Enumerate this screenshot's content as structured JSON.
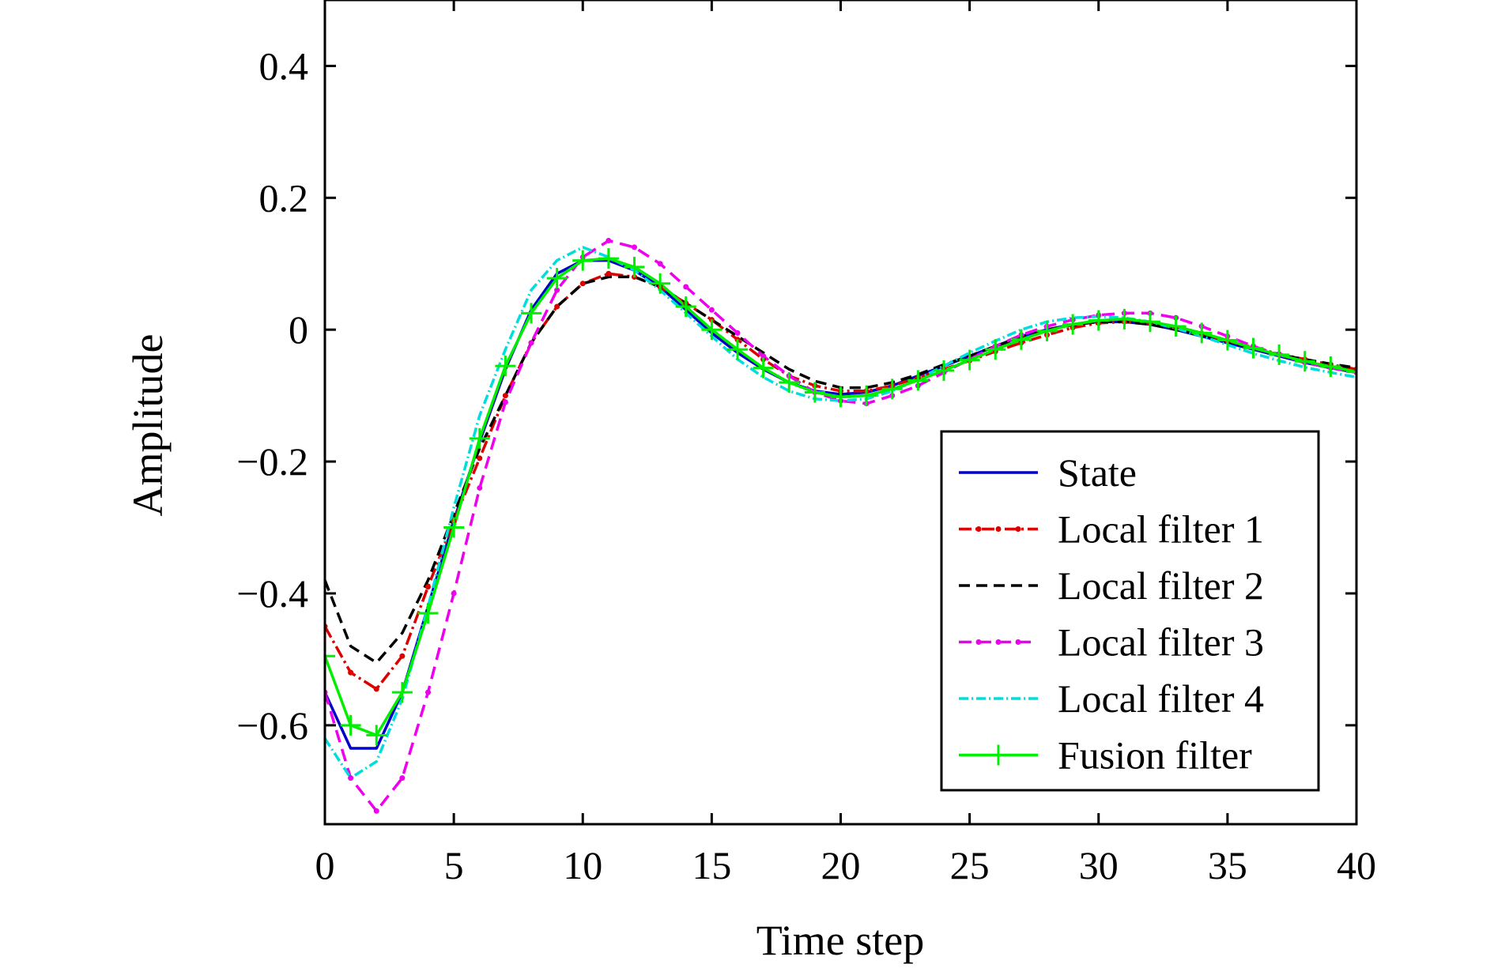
{
  "chart_data": {
    "type": "line",
    "title": "",
    "xlabel": "Time step",
    "ylabel": "Amplitude",
    "xlim": [
      0,
      40
    ],
    "ylim": [
      -0.75,
      0.5
    ],
    "x_ticks": [
      0,
      5,
      10,
      15,
      20,
      25,
      30,
      35,
      40
    ],
    "x_tick_labels": [
      "0",
      "5",
      "10",
      "15",
      "20",
      "25",
      "30",
      "35",
      "40"
    ],
    "y_ticks": [
      -0.6,
      -0.4,
      -0.2,
      0,
      0.2,
      0.4
    ],
    "y_tick_labels": [
      "−0.6",
      "−0.4",
      "−0.2",
      "0",
      "0.2",
      "0.4"
    ],
    "grid": false,
    "legend_position": "bottom-right",
    "x": [
      0,
      1,
      2,
      3,
      4,
      5,
      6,
      7,
      8,
      9,
      10,
      11,
      12,
      13,
      14,
      15,
      16,
      17,
      18,
      19,
      20,
      21,
      22,
      23,
      24,
      25,
      26,
      27,
      28,
      29,
      30,
      31,
      32,
      33,
      34,
      35,
      36,
      37,
      38,
      39,
      40
    ],
    "series": [
      {
        "name": "State",
        "color": "#0000cc",
        "dash": "",
        "marker": "none",
        "values": [
          -0.55,
          -0.635,
          -0.635,
          -0.55,
          -0.42,
          -0.29,
          -0.17,
          -0.06,
          0.03,
          0.085,
          0.105,
          0.105,
          0.09,
          0.065,
          0.03,
          -0.005,
          -0.035,
          -0.06,
          -0.08,
          -0.093,
          -0.098,
          -0.095,
          -0.085,
          -0.07,
          -0.055,
          -0.04,
          -0.025,
          -0.01,
          0.0,
          0.008,
          0.012,
          0.012,
          0.008,
          0.0,
          -0.01,
          -0.02,
          -0.03,
          -0.04,
          -0.05,
          -0.058,
          -0.065
        ]
      },
      {
        "name": "Local filter 1",
        "color": "#dd0000",
        "dash": "16,5,3,5",
        "marker": "dot",
        "values": [
          -0.45,
          -0.52,
          -0.545,
          -0.495,
          -0.39,
          -0.29,
          -0.195,
          -0.1,
          -0.02,
          0.035,
          0.07,
          0.085,
          0.08,
          0.065,
          0.04,
          0.015,
          -0.015,
          -0.045,
          -0.07,
          -0.085,
          -0.093,
          -0.093,
          -0.085,
          -0.073,
          -0.06,
          -0.047,
          -0.033,
          -0.02,
          -0.008,
          0.003,
          0.01,
          0.012,
          0.01,
          0.003,
          -0.006,
          -0.017,
          -0.027,
          -0.037,
          -0.045,
          -0.053,
          -0.06
        ]
      },
      {
        "name": "Local filter 2",
        "color": "#000000",
        "dash": "14,8",
        "marker": "none",
        "values": [
          -0.38,
          -0.48,
          -0.505,
          -0.46,
          -0.38,
          -0.28,
          -0.18,
          -0.1,
          -0.02,
          0.035,
          0.07,
          0.08,
          0.08,
          0.065,
          0.04,
          0.015,
          -0.01,
          -0.035,
          -0.06,
          -0.078,
          -0.088,
          -0.088,
          -0.08,
          -0.068,
          -0.053,
          -0.04,
          -0.025,
          -0.012,
          0.0,
          0.007,
          0.012,
          0.012,
          0.008,
          0.0,
          -0.008,
          -0.018,
          -0.028,
          -0.038,
          -0.045,
          -0.052,
          -0.058
        ]
      },
      {
        "name": "Local filter 3",
        "color": "#ee00ee",
        "dash": "16,9",
        "marker": "dot",
        "values": [
          -0.55,
          -0.68,
          -0.73,
          -0.68,
          -0.55,
          -0.4,
          -0.24,
          -0.11,
          -0.02,
          0.06,
          0.11,
          0.135,
          0.125,
          0.1,
          0.065,
          0.03,
          -0.005,
          -0.04,
          -0.07,
          -0.095,
          -0.108,
          -0.112,
          -0.1,
          -0.085,
          -0.065,
          -0.045,
          -0.025,
          -0.008,
          0.005,
          0.015,
          0.022,
          0.025,
          0.025,
          0.018,
          0.005,
          -0.01,
          -0.025,
          -0.038,
          -0.05,
          -0.058,
          -0.065
        ]
      },
      {
        "name": "Local filter 4",
        "color": "#00dddd",
        "dash": "12,4,2,4",
        "marker": "none",
        "values": [
          -0.62,
          -0.68,
          -0.655,
          -0.56,
          -0.42,
          -0.27,
          -0.13,
          -0.03,
          0.06,
          0.105,
          0.125,
          0.11,
          0.09,
          0.06,
          0.025,
          -0.01,
          -0.045,
          -0.072,
          -0.093,
          -0.105,
          -0.108,
          -0.105,
          -0.093,
          -0.075,
          -0.055,
          -0.035,
          -0.017,
          0.0,
          0.012,
          0.018,
          0.02,
          0.018,
          0.012,
          0.002,
          -0.01,
          -0.023,
          -0.036,
          -0.047,
          -0.057,
          -0.065,
          -0.072
        ]
      },
      {
        "name": "Fusion filter",
        "color": "#00ee00",
        "dash": "",
        "marker": "plus",
        "values": [
          -0.495,
          -0.6,
          -0.615,
          -0.55,
          -0.43,
          -0.3,
          -0.165,
          -0.055,
          0.025,
          0.078,
          0.105,
          0.108,
          0.095,
          0.07,
          0.035,
          0.0,
          -0.03,
          -0.058,
          -0.08,
          -0.095,
          -0.102,
          -0.1,
          -0.09,
          -0.077,
          -0.062,
          -0.046,
          -0.03,
          -0.015,
          -0.002,
          0.008,
          0.014,
          0.016,
          0.012,
          0.005,
          -0.005,
          -0.016,
          -0.028,
          -0.038,
          -0.048,
          -0.056,
          -0.064
        ]
      }
    ]
  }
}
